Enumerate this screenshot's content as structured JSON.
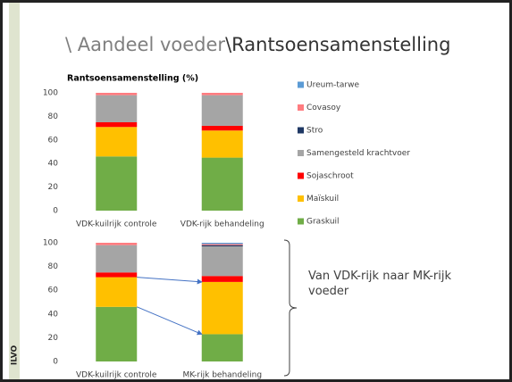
{
  "slide": {
    "title_part1": "\\ Aandeel voeder",
    "title_part2": "\\Rantsoensamenstelling",
    "annotation": "Van VDK-rijk naar MK-rijk voeder",
    "logo": "ILVO"
  },
  "chart_data": [
    {
      "type": "stacked_bar",
      "title": "Rantsoensamenstelling (%)",
      "categories": [
        "VDK-kuilrijk controle",
        "VDK-rijk behandeling"
      ],
      "series": [
        {
          "name": "Graskuil",
          "color": "#70ad47",
          "values": [
            46,
            45
          ]
        },
        {
          "name": "Maïskuil",
          "color": "#ffc000",
          "values": [
            25,
            23
          ]
        },
        {
          "name": "Sojaschroot",
          "color": "#ff0000",
          "values": [
            4,
            4
          ]
        },
        {
          "name": "Samengesteld krachtvoer",
          "color": "#a5a5a5",
          "values": [
            23,
            26
          ]
        },
        {
          "name": "Stro",
          "color": "#1f3864",
          "values": [
            0,
            0
          ]
        },
        {
          "name": "Covasoy",
          "color": "#ff7c80",
          "values": [
            2,
            2
          ]
        },
        {
          "name": "Ureum-tarwe",
          "color": "#5b9bd5",
          "values": [
            0,
            0
          ]
        }
      ],
      "ylim": [
        0,
        100
      ],
      "yticks": [
        0,
        20,
        40,
        60,
        80,
        100
      ],
      "legend": "right"
    },
    {
      "type": "stacked_bar",
      "categories": [
        "VDK-kuilrijk controle",
        "MK-rijk behandeling"
      ],
      "series": [
        {
          "color": "#70ad47",
          "values": [
            46,
            23
          ]
        },
        {
          "color": "#ffc000",
          "values": [
            25,
            44
          ]
        },
        {
          "color": "#ff0000",
          "values": [
            4,
            5
          ]
        },
        {
          "color": "#a5a5a5",
          "values": [
            23,
            25
          ]
        },
        {
          "color": "#1f3864",
          "values": [
            0,
            1
          ]
        },
        {
          "color": "#ff7c80",
          "values": [
            2,
            1
          ]
        },
        {
          "color": "#5b9bd5",
          "values": [
            0,
            1
          ]
        }
      ],
      "ylim": [
        0,
        100
      ],
      "yticks": [
        0,
        20,
        40,
        60,
        80,
        100
      ]
    }
  ]
}
